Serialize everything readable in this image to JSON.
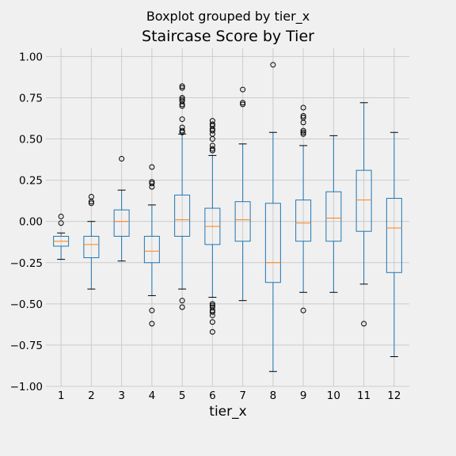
{
  "chart_data": {
    "type": "box",
    "suptitle": "Boxplot grouped by tier_x",
    "title": "Staircase Score by Tier",
    "xlabel": "tier_x",
    "ylabel": "",
    "ylim": [
      -1.0,
      1.05
    ],
    "yticks": [
      -1.0,
      -0.75,
      -0.5,
      -0.25,
      0.0,
      0.25,
      0.5,
      0.75,
      1.0
    ],
    "ytick_labels": [
      "−1.00",
      "−0.75",
      "−0.50",
      "−0.25",
      "0.00",
      "0.25",
      "0.50",
      "0.75",
      "1.00"
    ],
    "grid": true,
    "colors": {
      "box": "#1f77b4",
      "median": "#ff7f0e",
      "background": "#f0f0f0",
      "grid": "#cbcbcb"
    },
    "categories": [
      "1",
      "2",
      "3",
      "4",
      "5",
      "6",
      "7",
      "8",
      "9",
      "10",
      "11",
      "12"
    ],
    "boxes": [
      {
        "category": "1",
        "whislo": -0.23,
        "q1": -0.15,
        "med": -0.12,
        "q3": -0.09,
        "whishi": -0.07,
        "fliers": [
          0.03,
          -0.01
        ]
      },
      {
        "category": "2",
        "whislo": -0.41,
        "q1": -0.22,
        "med": -0.14,
        "q3": -0.09,
        "whishi": 0.0,
        "fliers": [
          0.15,
          0.12,
          0.11
        ]
      },
      {
        "category": "3",
        "whislo": -0.24,
        "q1": -0.09,
        "med": 0.0,
        "q3": 0.07,
        "whishi": 0.19,
        "fliers": [
          0.38
        ]
      },
      {
        "category": "4",
        "whislo": -0.45,
        "q1": -0.25,
        "med": -0.18,
        "q3": -0.09,
        "whishi": 0.1,
        "fliers": [
          0.33,
          0.24,
          0.23,
          0.21,
          -0.54,
          -0.62
        ]
      },
      {
        "category": "5",
        "whislo": -0.41,
        "q1": -0.09,
        "med": 0.01,
        "q3": 0.16,
        "whishi": 0.53,
        "fliers": [
          0.81,
          0.82,
          0.75,
          0.74,
          0.73,
          0.71,
          0.7,
          0.62,
          0.57,
          0.55,
          0.54,
          -0.48,
          -0.52
        ]
      },
      {
        "category": "6",
        "whislo": -0.46,
        "q1": -0.14,
        "med": -0.03,
        "q3": 0.08,
        "whishi": 0.4,
        "fliers": [
          0.61,
          0.59,
          0.58,
          0.56,
          0.55,
          0.53,
          0.5,
          0.46,
          0.44,
          0.43,
          -0.5,
          -0.51,
          -0.52,
          -0.54,
          -0.55,
          -0.57,
          -0.61,
          -0.67
        ]
      },
      {
        "category": "7",
        "whislo": -0.48,
        "q1": -0.12,
        "med": 0.01,
        "q3": 0.12,
        "whishi": 0.47,
        "fliers": [
          0.8,
          0.72,
          0.71
        ]
      },
      {
        "category": "8",
        "whislo": -0.91,
        "q1": -0.37,
        "med": -0.25,
        "q3": 0.11,
        "whishi": 0.54,
        "fliers": [
          0.95
        ]
      },
      {
        "category": "9",
        "whislo": -0.43,
        "q1": -0.12,
        "med": -0.01,
        "q3": 0.13,
        "whishi": 0.46,
        "fliers": [
          0.69,
          0.64,
          0.63,
          0.6,
          0.55,
          0.54,
          0.53,
          -0.54
        ]
      },
      {
        "category": "10",
        "whislo": -0.43,
        "q1": -0.12,
        "med": 0.02,
        "q3": 0.18,
        "whishi": 0.52,
        "fliers": []
      },
      {
        "category": "11",
        "whislo": -0.38,
        "q1": -0.06,
        "med": 0.13,
        "q3": 0.31,
        "whishi": 0.72,
        "fliers": [
          -0.62
        ]
      },
      {
        "category": "12",
        "whislo": -0.82,
        "q1": -0.31,
        "med": -0.04,
        "q3": 0.14,
        "whishi": 0.54,
        "fliers": []
      }
    ]
  }
}
